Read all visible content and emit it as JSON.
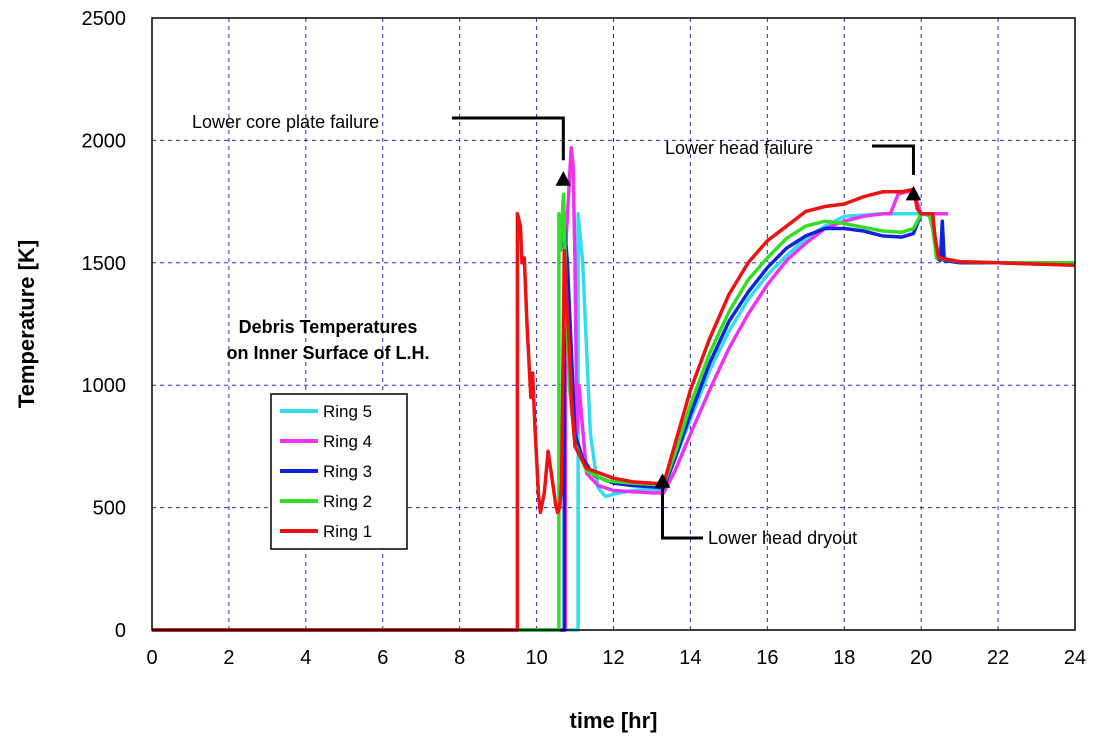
{
  "chart_data": {
    "type": "line",
    "title": "",
    "xlabel": "time [hr]",
    "ylabel": "Temperature [K]",
    "xlim": [
      0,
      24
    ],
    "ylim": [
      0,
      2500
    ],
    "xticks": [
      0,
      2,
      4,
      6,
      8,
      10,
      12,
      14,
      16,
      18,
      20,
      22,
      24
    ],
    "yticks": [
      0,
      500,
      1000,
      1500,
      2000,
      2500
    ],
    "grid": true,
    "legend_position": "left-center",
    "inset_title": [
      "Debris Temperatures",
      "on Inner Surface of L.H."
    ],
    "annotations": [
      {
        "text": "Lower core plate failure",
        "x": 10.8,
        "y": 1870
      },
      {
        "text": "Lower head failure",
        "x": 19.8,
        "y": 1810
      },
      {
        "text": "Lower head dryout",
        "x": 13.3,
        "y": 530
      }
    ],
    "series": [
      {
        "name": "Ring 5",
        "color": "#33ddee",
        "points": [
          [
            0,
            0
          ],
          [
            11.08,
            0
          ],
          [
            11.08,
            1700
          ],
          [
            11.2,
            1500
          ],
          [
            11.4,
            800
          ],
          [
            11.6,
            580
          ],
          [
            11.8,
            545
          ],
          [
            12.0,
            555
          ],
          [
            12.5,
            570
          ],
          [
            13.0,
            575
          ],
          [
            13.3,
            575
          ],
          [
            13.6,
            700
          ],
          [
            14.0,
            860
          ],
          [
            14.5,
            1060
          ],
          [
            15.0,
            1220
          ],
          [
            15.5,
            1350
          ],
          [
            16.0,
            1450
          ],
          [
            16.5,
            1530
          ],
          [
            17.0,
            1600
          ],
          [
            17.5,
            1650
          ],
          [
            18.0,
            1690
          ],
          [
            18.5,
            1695
          ],
          [
            19.0,
            1700
          ],
          [
            19.5,
            1700
          ],
          [
            19.8,
            1700
          ],
          [
            20.0,
            1700
          ],
          [
            20.3,
            1690
          ],
          [
            20.4,
            1530
          ],
          [
            21.0,
            1500
          ],
          [
            22.0,
            1500
          ],
          [
            23.0,
            1495
          ],
          [
            24.0,
            1490
          ]
        ]
      },
      {
        "name": "Ring 4",
        "color": "#ee33ee",
        "points": [
          [
            0,
            0
          ],
          [
            10.75,
            0
          ],
          [
            10.75,
            1550
          ],
          [
            10.9,
            1970
          ],
          [
            10.95,
            1900
          ],
          [
            11.0,
            1500
          ],
          [
            11.05,
            800
          ],
          [
            11.1,
            1000
          ],
          [
            11.3,
            640
          ],
          [
            11.6,
            590
          ],
          [
            12.0,
            570
          ],
          [
            12.5,
            565
          ],
          [
            13.0,
            560
          ],
          [
            13.3,
            560
          ],
          [
            13.6,
            650
          ],
          [
            14.0,
            800
          ],
          [
            14.5,
            980
          ],
          [
            15.0,
            1150
          ],
          [
            15.5,
            1290
          ],
          [
            16.0,
            1410
          ],
          [
            16.5,
            1510
          ],
          [
            17.0,
            1580
          ],
          [
            17.5,
            1640
          ],
          [
            18.0,
            1670
          ],
          [
            18.5,
            1690
          ],
          [
            19.0,
            1700
          ],
          [
            19.2,
            1700
          ],
          [
            19.4,
            1780
          ],
          [
            19.6,
            1790
          ],
          [
            19.8,
            1790
          ],
          [
            20.0,
            1700
          ],
          [
            20.3,
            1700
          ],
          [
            20.6,
            1700
          ],
          [
            20.65,
            1700
          ],
          [
            20.7,
            1700
          ]
        ]
      },
      {
        "name": "Ring 3",
        "color": "#1122dd",
        "points": [
          [
            0,
            0
          ],
          [
            10.72,
            0
          ],
          [
            10.72,
            1660
          ],
          [
            10.8,
            1500
          ],
          [
            11.0,
            800
          ],
          [
            11.2,
            700
          ],
          [
            11.5,
            630
          ],
          [
            12.0,
            600
          ],
          [
            12.5,
            590
          ],
          [
            13.0,
            585
          ],
          [
            13.3,
            580
          ],
          [
            13.6,
            700
          ],
          [
            14.0,
            880
          ],
          [
            14.5,
            1090
          ],
          [
            15.0,
            1260
          ],
          [
            15.5,
            1380
          ],
          [
            16.0,
            1480
          ],
          [
            16.5,
            1560
          ],
          [
            17.0,
            1610
          ],
          [
            17.5,
            1640
          ],
          [
            18.0,
            1640
          ],
          [
            18.5,
            1630
          ],
          [
            19.0,
            1610
          ],
          [
            19.5,
            1605
          ],
          [
            19.8,
            1620
          ],
          [
            20.0,
            1700
          ],
          [
            20.3,
            1700
          ],
          [
            20.4,
            1520
          ],
          [
            20.5,
            1510
          ],
          [
            20.55,
            1670
          ],
          [
            20.6,
            1510
          ],
          [
            21.0,
            1500
          ],
          [
            22.0,
            1500
          ],
          [
            23.0,
            1495
          ],
          [
            24.0,
            1495
          ]
        ]
      },
      {
        "name": "Ring 2",
        "color": "#33dd22",
        "points": [
          [
            0,
            0
          ],
          [
            10.58,
            0
          ],
          [
            10.58,
            1700
          ],
          [
            10.62,
            1550
          ],
          [
            10.7,
            1780
          ],
          [
            10.78,
            1300
          ],
          [
            10.85,
            1000
          ],
          [
            11.0,
            760
          ],
          [
            11.3,
            650
          ],
          [
            11.8,
            610
          ],
          [
            12.5,
            600
          ],
          [
            13.0,
            595
          ],
          [
            13.3,
            590
          ],
          [
            13.6,
            720
          ],
          [
            14.0,
            920
          ],
          [
            14.5,
            1130
          ],
          [
            15.0,
            1300
          ],
          [
            15.5,
            1430
          ],
          [
            16.0,
            1520
          ],
          [
            16.5,
            1600
          ],
          [
            17.0,
            1650
          ],
          [
            17.5,
            1670
          ],
          [
            18.0,
            1660
          ],
          [
            18.5,
            1645
          ],
          [
            19.0,
            1630
          ],
          [
            19.5,
            1625
          ],
          [
            19.8,
            1640
          ],
          [
            20.0,
            1700
          ],
          [
            20.2,
            1700
          ],
          [
            20.3,
            1640
          ],
          [
            20.4,
            1520
          ],
          [
            21.0,
            1505
          ],
          [
            22.0,
            1500
          ],
          [
            23.0,
            1500
          ],
          [
            24.0,
            1500
          ]
        ]
      },
      {
        "name": "Ring 1",
        "color": "#ee1111",
        "points": [
          [
            0,
            0
          ],
          [
            9.5,
            0
          ],
          [
            9.5,
            1700
          ],
          [
            9.58,
            1650
          ],
          [
            9.62,
            1500
          ],
          [
            9.68,
            1520
          ],
          [
            9.75,
            1250
          ],
          [
            9.8,
            1100
          ],
          [
            9.85,
            950
          ],
          [
            9.9,
            1050
          ],
          [
            9.95,
            850
          ],
          [
            10.0,
            700
          ],
          [
            10.05,
            550
          ],
          [
            10.1,
            480
          ],
          [
            10.2,
            560
          ],
          [
            10.3,
            730
          ],
          [
            10.4,
            620
          ],
          [
            10.5,
            510
          ],
          [
            10.55,
            480
          ],
          [
            10.6,
            500
          ],
          [
            10.65,
            600
          ],
          [
            10.72,
            1550
          ],
          [
            10.78,
            1350
          ],
          [
            10.85,
            1150
          ],
          [
            10.92,
            900
          ],
          [
            11.0,
            750
          ],
          [
            11.3,
            660
          ],
          [
            12.0,
            620
          ],
          [
            12.5,
            605
          ],
          [
            13.0,
            600
          ],
          [
            13.3,
            595
          ],
          [
            13.6,
            760
          ],
          [
            14.0,
            980
          ],
          [
            14.5,
            1190
          ],
          [
            15.0,
            1370
          ],
          [
            15.5,
            1500
          ],
          [
            16.0,
            1590
          ],
          [
            16.5,
            1650
          ],
          [
            17.0,
            1710
          ],
          [
            17.5,
            1730
          ],
          [
            18.0,
            1740
          ],
          [
            18.5,
            1770
          ],
          [
            19.0,
            1790
          ],
          [
            19.5,
            1790
          ],
          [
            19.8,
            1800
          ],
          [
            19.9,
            1720
          ],
          [
            20.0,
            1700
          ],
          [
            20.3,
            1700
          ],
          [
            20.35,
            1620
          ],
          [
            20.45,
            1520
          ],
          [
            21.0,
            1505
          ],
          [
            22.0,
            1500
          ],
          [
            23.0,
            1495
          ],
          [
            24.0,
            1490
          ]
        ]
      }
    ]
  }
}
